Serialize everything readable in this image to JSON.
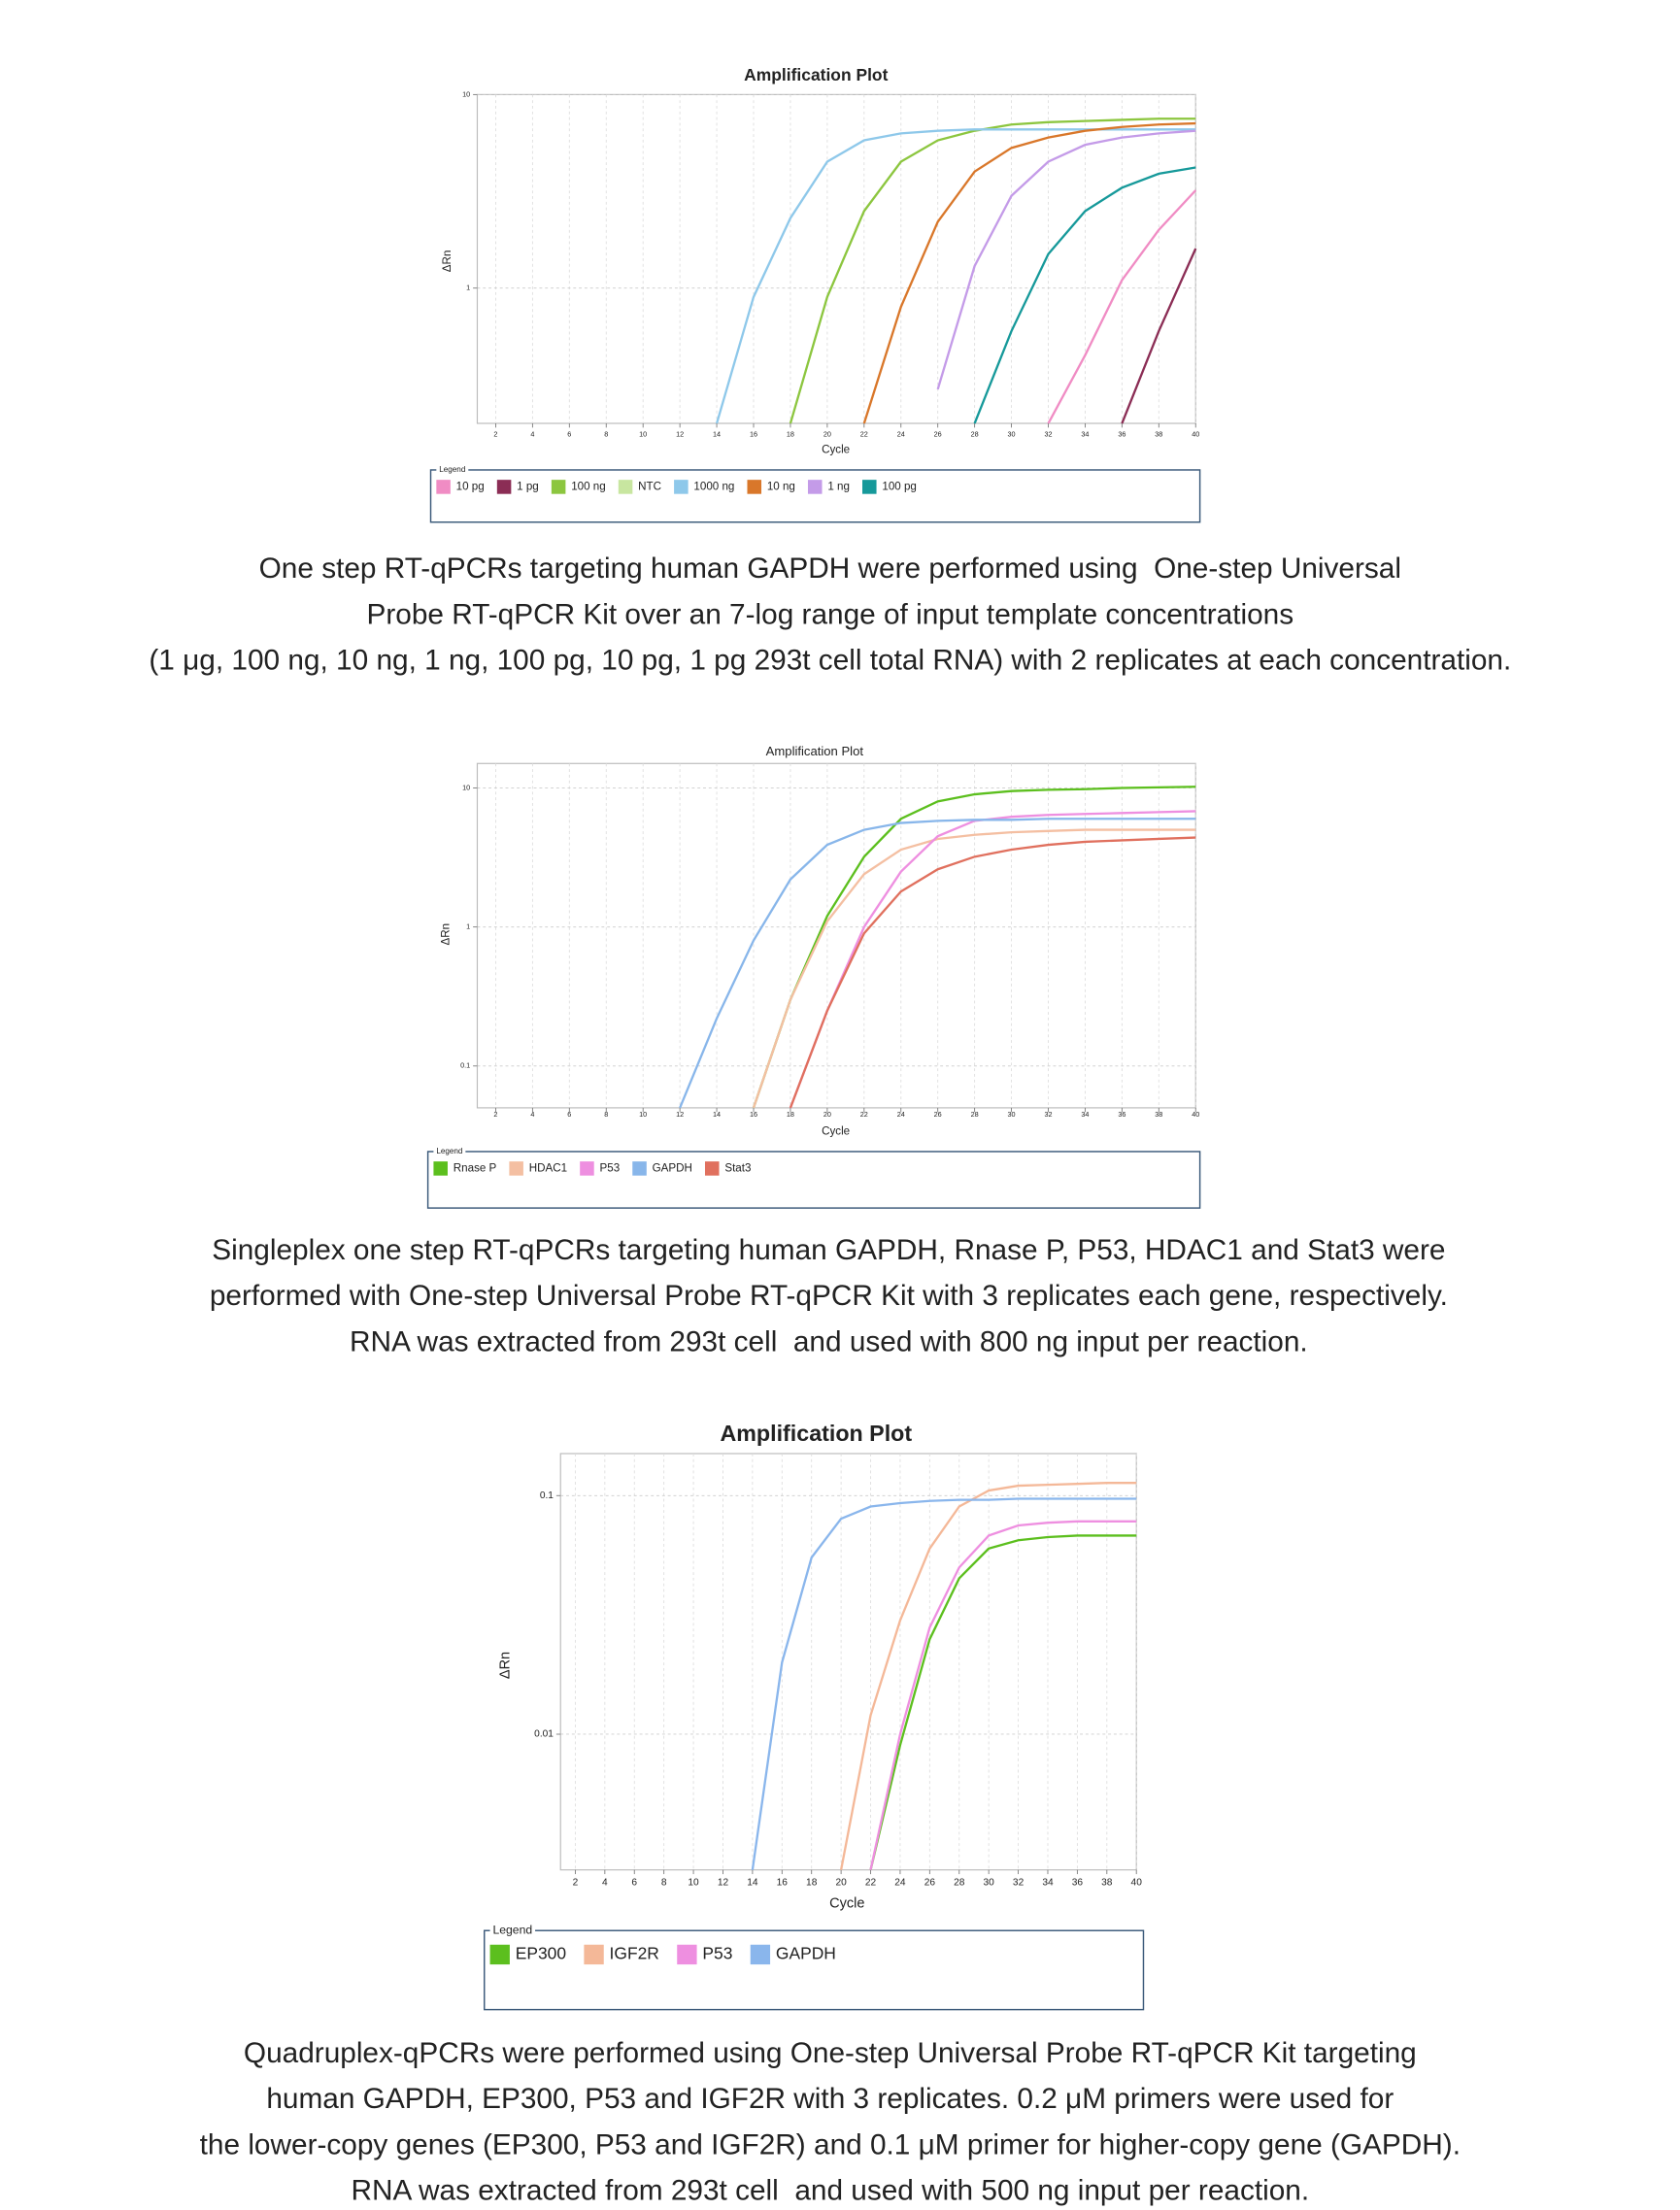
{
  "chart_data": [
    {
      "type": "line",
      "title": "Amplification Plot",
      "xlabel": "Cycle",
      "ylabel": "ΔRn",
      "log_y": true,
      "grid": true,
      "legend_title": "Legend",
      "x": [
        2,
        4,
        6,
        8,
        10,
        12,
        14,
        16,
        18,
        20,
        22,
        24,
        26,
        28,
        30,
        32,
        34,
        36,
        38,
        40
      ],
      "xlim": [
        1,
        40
      ],
      "ylim": [
        0.2,
        10
      ],
      "xticks": [
        2,
        4,
        6,
        8,
        10,
        12,
        14,
        16,
        18,
        20,
        22,
        24,
        26,
        28,
        30,
        32,
        34,
        36,
        38,
        40
      ],
      "yticks": [
        1,
        10
      ],
      "series": [
        {
          "name": "10 pg",
          "color": "#f08cc4",
          "values": [
            null,
            null,
            null,
            null,
            null,
            null,
            null,
            null,
            null,
            null,
            null,
            null,
            null,
            null,
            null,
            0.2,
            0.45,
            1.1,
            2,
            3.2
          ]
        },
        {
          "name": "1 pg",
          "color": "#8b2d55",
          "values": [
            null,
            null,
            null,
            null,
            null,
            null,
            null,
            null,
            null,
            null,
            null,
            null,
            null,
            null,
            null,
            null,
            null,
            0.2,
            0.6,
            1.6
          ]
        },
        {
          "name": "100 ng",
          "color": "#8cc63f",
          "values": [
            null,
            null,
            null,
            null,
            null,
            null,
            null,
            null,
            0.2,
            0.9,
            2.5,
            4.5,
            5.8,
            6.5,
            7,
            7.2,
            7.3,
            7.4,
            7.5,
            7.5
          ]
        },
        {
          "name": "NTC",
          "color": "#c8e6a0",
          "values": [
            null,
            null,
            null,
            null,
            null,
            null,
            null,
            null,
            null,
            null,
            null,
            null,
            null,
            null,
            null,
            null,
            null,
            null,
            null,
            null
          ]
        },
        {
          "name": "1000 ng",
          "color": "#8ec8ea",
          "values": [
            null,
            null,
            null,
            null,
            null,
            null,
            0.2,
            0.9,
            2.3,
            4.5,
            5.8,
            6.3,
            6.5,
            6.6,
            6.6,
            6.6,
            6.6,
            6.6,
            6.6,
            6.6
          ]
        },
        {
          "name": "10 ng",
          "color": "#d9772a",
          "values": [
            null,
            null,
            null,
            null,
            null,
            null,
            null,
            null,
            null,
            null,
            0.2,
            0.8,
            2.2,
            4,
            5.3,
            6,
            6.5,
            6.8,
            7,
            7.1
          ]
        },
        {
          "name": "1 ng",
          "color": "#c49be8",
          "values": [
            null,
            null,
            null,
            null,
            null,
            null,
            null,
            null,
            null,
            null,
            null,
            null,
            0.3,
            1.3,
            3,
            4.5,
            5.5,
            6,
            6.3,
            6.5
          ]
        },
        {
          "name": "100 pg",
          "color": "#16999a",
          "values": [
            null,
            null,
            null,
            null,
            null,
            null,
            null,
            null,
            null,
            null,
            null,
            null,
            null,
            0.2,
            0.6,
            1.5,
            2.5,
            3.3,
            3.9,
            4.2
          ]
        }
      ]
    },
    {
      "type": "line",
      "title": "Amplification Plot",
      "xlabel": "Cycle",
      "ylabel": "ΔRn",
      "log_y": true,
      "grid": true,
      "legend_title": "Legend",
      "x": [
        2,
        4,
        6,
        8,
        10,
        12,
        14,
        16,
        18,
        20,
        22,
        24,
        26,
        28,
        30,
        32,
        34,
        36,
        38,
        40
      ],
      "xlim": [
        1,
        40
      ],
      "ylim": [
        0.05,
        15
      ],
      "xticks": [
        2,
        4,
        6,
        8,
        10,
        12,
        14,
        16,
        18,
        20,
        22,
        24,
        26,
        28,
        30,
        32,
        34,
        36,
        38,
        40
      ],
      "yticks": [
        0.1,
        1,
        10
      ],
      "series": [
        {
          "name": "Rnase P",
          "color": "#5cbf1e",
          "values": [
            null,
            null,
            null,
            null,
            null,
            null,
            null,
            0.05,
            0.3,
            1.2,
            3.2,
            6,
            8,
            9,
            9.5,
            9.7,
            9.8,
            10,
            10.1,
            10.2
          ]
        },
        {
          "name": "HDAC1",
          "color": "#f4bfa2",
          "values": [
            null,
            null,
            null,
            null,
            null,
            null,
            null,
            0.05,
            0.3,
            1.1,
            2.4,
            3.6,
            4.3,
            4.6,
            4.8,
            4.9,
            5,
            5,
            5,
            5
          ]
        },
        {
          "name": "P53",
          "color": "#ee8fe0",
          "values": [
            null,
            null,
            null,
            null,
            null,
            null,
            null,
            null,
            0.05,
            0.25,
            1,
            2.5,
            4.5,
            5.8,
            6.2,
            6.4,
            6.5,
            6.6,
            6.7,
            6.8
          ]
        },
        {
          "name": "GAPDH",
          "color": "#88b6ea",
          "values": [
            null,
            null,
            null,
            null,
            null,
            0.05,
            0.22,
            0.8,
            2.2,
            3.9,
            5,
            5.6,
            5.8,
            5.9,
            5.9,
            6,
            6,
            6,
            6,
            6
          ]
        },
        {
          "name": "Stat3",
          "color": "#e0705e",
          "values": [
            null,
            null,
            null,
            null,
            null,
            null,
            null,
            null,
            0.05,
            0.25,
            0.9,
            1.8,
            2.6,
            3.2,
            3.6,
            3.9,
            4.1,
            4.2,
            4.3,
            4.4
          ]
        }
      ]
    },
    {
      "type": "line",
      "title": "Amplification Plot",
      "xlabel": "Cycle",
      "ylabel": "ΔRn",
      "log_y": true,
      "grid": true,
      "legend_title": "Legend",
      "x": [
        2,
        4,
        6,
        8,
        10,
        12,
        14,
        16,
        18,
        20,
        22,
        24,
        26,
        28,
        30,
        32,
        34,
        36,
        38,
        40
      ],
      "xlim": [
        1,
        40
      ],
      "ylim": [
        0.0027,
        0.15
      ],
      "xticks": [
        2,
        4,
        6,
        8,
        10,
        12,
        14,
        16,
        18,
        20,
        22,
        24,
        26,
        28,
        30,
        32,
        34,
        36,
        38,
        40
      ],
      "yticks": [
        0.01,
        0.1
      ],
      "series": [
        {
          "name": "EP300",
          "color": "#5cbf1e",
          "values": [
            null,
            null,
            null,
            null,
            null,
            null,
            null,
            null,
            null,
            null,
            0.0027,
            0.009,
            0.025,
            0.045,
            0.06,
            0.065,
            0.067,
            0.068,
            0.068,
            0.068
          ]
        },
        {
          "name": "IGF2R",
          "color": "#f4b898",
          "values": [
            null,
            null,
            null,
            null,
            null,
            null,
            null,
            null,
            null,
            0.0027,
            0.012,
            0.03,
            0.06,
            0.09,
            0.105,
            0.11,
            0.111,
            0.112,
            0.113,
            0.113
          ]
        },
        {
          "name": "P53",
          "color": "#ee8fe0",
          "values": [
            null,
            null,
            null,
            null,
            null,
            null,
            null,
            null,
            null,
            null,
            0.0027,
            0.01,
            0.028,
            0.05,
            0.068,
            0.075,
            0.077,
            0.078,
            0.078,
            0.078
          ]
        },
        {
          "name": "GAPDH",
          "color": "#8ab6ec",
          "values": [
            null,
            null,
            null,
            null,
            null,
            null,
            0.0027,
            0.02,
            0.055,
            0.08,
            0.09,
            0.093,
            0.095,
            0.096,
            0.096,
            0.097,
            0.097,
            0.097,
            0.097,
            0.097
          ]
        }
      ]
    }
  ],
  "captions": [
    [
      "One step RT-qPCRs targeting human GAPDH were performed using  One-step Universal",
      "Probe RT-qPCR Kit over an 7-log range of input template concentrations",
      "(1 μg, 100 ng, 10 ng, 1 ng, 100 pg, 10 pg, 1 pg 293t cell total RNA) with 2 replicates at each concentration."
    ],
    [
      "Singleplex one step RT-qPCRs targeting human GAPDH, Rnase P, P53, HDAC1 and Stat3 were",
      "performed with One-step Universal Probe RT-qPCR Kit with 3 replicates each gene, respectively.",
      "RNA was extracted from 293t cell  and used with 800 ng input per reaction."
    ],
    [
      "Quadruplex-qPCRs were performed using One-step Universal Probe RT-qPCR Kit targeting",
      "human GAPDH, EP300, P53 and IGF2R with 3 replicates. 0.2 μM primers were used for",
      "the lower-copy genes (EP300, P53 and IGF2R) and 0.1 μM primer for higher-copy gene (GAPDH).",
      "RNA was extracted from 293t cell  and used with 500 ng input per reaction."
    ]
  ]
}
